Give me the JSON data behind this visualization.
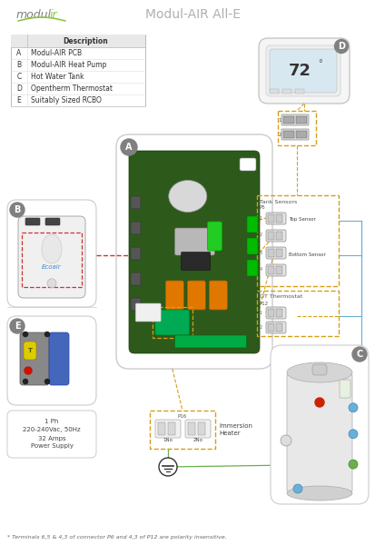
{
  "title": "Modul-AIR All-E",
  "background_color": "#ffffff",
  "table_items": [
    [
      "A",
      "Modul-AIR PCB"
    ],
    [
      "B",
      "Modul-AIR Heat Pump"
    ],
    [
      "C",
      "Hot Water Tank"
    ],
    [
      "D",
      "Opentherm Thermostat"
    ],
    [
      "E",
      "Suitably Sized RCBO"
    ]
  ],
  "table_header": "Description",
  "footnote": "* Terminals 6,5 & 4,3 of connector P6 and 4,3 of P12 are polarity insensitive.",
  "power_text": "1 Ph\n220-240Vac, 50Hz\n32 Amps\nPower Supply",
  "immersion_text": "Immersion\nHeater",
  "label_color_circle": "#808080",
  "dashed_orange": "#d4a017",
  "dashed_red": "#cc3333",
  "line_blue": "#6aafd6",
  "line_green": "#6ab04c",
  "pcb_bg": "#2d5a1b",
  "logo_green": "#8dc63f",
  "logo_gray": "#7f7f7f",
  "table_header_bg": "#e0e0e0",
  "table_border": "#bbbbbb"
}
